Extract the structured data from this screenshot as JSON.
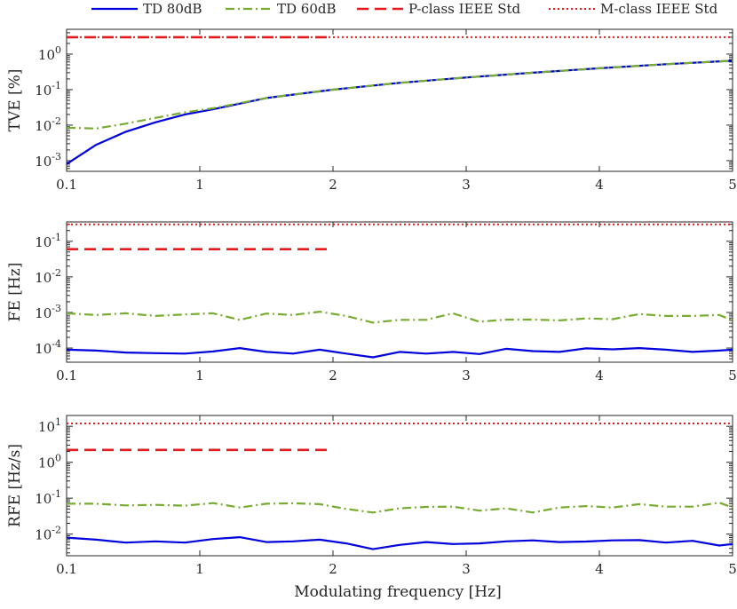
{
  "legend": {
    "placement": "top",
    "entries": [
      {
        "label": "TD 80dB",
        "color": "#0000dd",
        "style": "solid"
      },
      {
        "label": "TD 60dB",
        "color": "#77ac30",
        "style": "dashdot"
      },
      {
        "label": "P-class IEEE Std",
        "color": "#e41a1c",
        "style": "dashed"
      },
      {
        "label": "M-class IEEE Std",
        "color": "#e41a1c",
        "style": "dotted"
      }
    ]
  },
  "xlabel": "Modulating frequency [Hz]",
  "chart_data": [
    {
      "type": "line",
      "ylabel": "TVE [%]",
      "xlim": [
        0.1,
        5
      ],
      "ylim": [
        0.0005,
        5
      ],
      "yscale": "log",
      "xticks": [
        0.1,
        1,
        2,
        3,
        4,
        5
      ],
      "xtick_labels": [
        "0.1",
        "1",
        "2",
        "3",
        "4",
        "5"
      ],
      "yticks": [
        0.001,
        0.01,
        0.1,
        1
      ],
      "ytick_labels": [
        "10",
        "10",
        "10",
        "10"
      ],
      "ytick_exponents": [
        "-3",
        "-2",
        "-1",
        "0"
      ],
      "series": [
        {
          "name": "TD 80dB",
          "x": [
            0.1,
            0.3,
            0.5,
            0.7,
            0.9,
            1.1,
            1.5,
            2.0,
            2.5,
            3.0,
            3.5,
            4.0,
            4.5,
            5.0
          ],
          "y": [
            0.0008,
            0.0028,
            0.0065,
            0.012,
            0.02,
            0.028,
            0.058,
            0.1,
            0.155,
            0.22,
            0.3,
            0.4,
            0.52,
            0.65
          ]
        },
        {
          "name": "TD 60dB",
          "x": [
            0.1,
            0.3,
            0.5,
            0.7,
            0.9,
            1.1,
            1.5,
            2.0,
            2.5,
            3.0,
            3.5,
            4.0,
            4.5,
            5.0
          ],
          "y": [
            0.0085,
            0.008,
            0.011,
            0.016,
            0.023,
            0.03,
            0.058,
            0.1,
            0.155,
            0.22,
            0.3,
            0.4,
            0.52,
            0.65
          ]
        },
        {
          "name": "P-class IEEE Std",
          "x": [
            0.1,
            2.0
          ],
          "y": [
            3,
            3
          ]
        },
        {
          "name": "M-class IEEE Std",
          "x": [
            0.1,
            5.0
          ],
          "y": [
            3,
            3
          ]
        }
      ]
    },
    {
      "type": "line",
      "ylabel": "FE [Hz]",
      "xlim": [
        0.1,
        5
      ],
      "ylim": [
        4e-05,
        0.35
      ],
      "yscale": "log",
      "xticks": [
        0.1,
        1,
        2,
        3,
        4,
        5
      ],
      "xtick_labels": [
        "0.1",
        "1",
        "2",
        "3",
        "4",
        "5"
      ],
      "yticks": [
        0.0001,
        0.001,
        0.01,
        0.1
      ],
      "ytick_labels": [
        "10",
        "10",
        "10",
        "10"
      ],
      "ytick_exponents": [
        "-4",
        "-3",
        "-2",
        "-1"
      ],
      "series": [
        {
          "name": "TD 80dB",
          "x": [
            0.1,
            0.3,
            0.5,
            0.7,
            0.9,
            1.1,
            1.3,
            1.5,
            1.7,
            1.9,
            2.1,
            2.3,
            2.5,
            2.7,
            2.9,
            3.1,
            3.3,
            3.5,
            3.7,
            3.9,
            4.1,
            4.3,
            4.5,
            4.7,
            4.9,
            5.0
          ],
          "y": [
            9e-05,
            8.5e-05,
            7.5e-05,
            7.2e-05,
            7e-05,
            8e-05,
            0.0001,
            7.8e-05,
            7e-05,
            9e-05,
            7e-05,
            5.5e-05,
            7.8e-05,
            7e-05,
            7.8e-05,
            6.8e-05,
            9.5e-05,
            8.2e-05,
            7.8e-05,
            9.8e-05,
            9.2e-05,
            0.0001,
            9e-05,
            7.8e-05,
            8.5e-05,
            9e-05
          ]
        },
        {
          "name": "TD 60dB",
          "x": [
            0.1,
            0.3,
            0.5,
            0.7,
            0.9,
            1.1,
            1.3,
            1.5,
            1.7,
            1.9,
            2.1,
            2.3,
            2.5,
            2.7,
            2.9,
            3.1,
            3.3,
            3.5,
            3.7,
            3.9,
            4.1,
            4.3,
            4.5,
            4.7,
            4.9,
            5.0
          ],
          "y": [
            0.00095,
            0.00085,
            0.00095,
            0.0008,
            0.00088,
            0.00095,
            0.00062,
            0.00093,
            0.00085,
            0.00105,
            0.0008,
            0.00052,
            0.00062,
            0.00062,
            0.00095,
            0.00055,
            0.00063,
            0.00063,
            0.0006,
            0.00068,
            0.00065,
            0.0009,
            0.0008,
            0.0008,
            0.00085,
            0.0006
          ]
        },
        {
          "name": "P-class IEEE Std",
          "x": [
            0.1,
            2.0
          ],
          "y": [
            0.06,
            0.06
          ]
        },
        {
          "name": "M-class IEEE Std",
          "x": [
            0.1,
            5.0
          ],
          "y": [
            0.3,
            0.3
          ]
        }
      ]
    },
    {
      "type": "line",
      "ylabel": "RFE [Hz/s]",
      "xlim": [
        0.1,
        5
      ],
      "ylim": [
        0.0025,
        20
      ],
      "yscale": "log",
      "xticks": [
        0.1,
        1,
        2,
        3,
        4,
        5
      ],
      "xtick_labels": [
        "0.1",
        "1",
        "2",
        "3",
        "4",
        "5"
      ],
      "yticks": [
        0.01,
        0.1,
        1,
        10
      ],
      "ytick_labels": [
        "10",
        "10",
        "10",
        "10"
      ],
      "ytick_exponents": [
        "-2",
        "-1",
        "0",
        "1"
      ],
      "series": [
        {
          "name": "TD 80dB",
          "x": [
            0.1,
            0.3,
            0.5,
            0.7,
            0.9,
            1.1,
            1.3,
            1.5,
            1.7,
            1.9,
            2.1,
            2.3,
            2.5,
            2.7,
            2.9,
            3.1,
            3.3,
            3.5,
            3.7,
            3.9,
            4.1,
            4.3,
            4.5,
            4.7,
            4.9,
            5.0
          ],
          "y": [
            0.008,
            0.007,
            0.0058,
            0.0063,
            0.0058,
            0.0073,
            0.0082,
            0.006,
            0.0063,
            0.007,
            0.0055,
            0.0038,
            0.005,
            0.006,
            0.0053,
            0.0055,
            0.0063,
            0.0067,
            0.006,
            0.0062,
            0.0067,
            0.0068,
            0.0058,
            0.0065,
            0.0048,
            0.0053
          ]
        },
        {
          "name": "TD 60dB",
          "x": [
            0.1,
            0.3,
            0.5,
            0.7,
            0.9,
            1.1,
            1.3,
            1.5,
            1.7,
            1.9,
            2.1,
            2.3,
            2.5,
            2.7,
            2.9,
            3.1,
            3.3,
            3.5,
            3.7,
            3.9,
            4.1,
            4.3,
            4.5,
            4.7,
            4.9,
            5.0
          ],
          "y": [
            0.07,
            0.07,
            0.063,
            0.065,
            0.062,
            0.073,
            0.055,
            0.07,
            0.072,
            0.068,
            0.05,
            0.04,
            0.052,
            0.057,
            0.058,
            0.045,
            0.052,
            0.04,
            0.055,
            0.06,
            0.055,
            0.068,
            0.058,
            0.058,
            0.075,
            0.055
          ]
        },
        {
          "name": "P-class IEEE Std",
          "x": [
            0.1,
            2.0
          ],
          "y": [
            2.2,
            2.2
          ]
        },
        {
          "name": "M-class IEEE Std",
          "x": [
            0.1,
            5.0
          ],
          "y": [
            12,
            12
          ]
        }
      ]
    }
  ]
}
